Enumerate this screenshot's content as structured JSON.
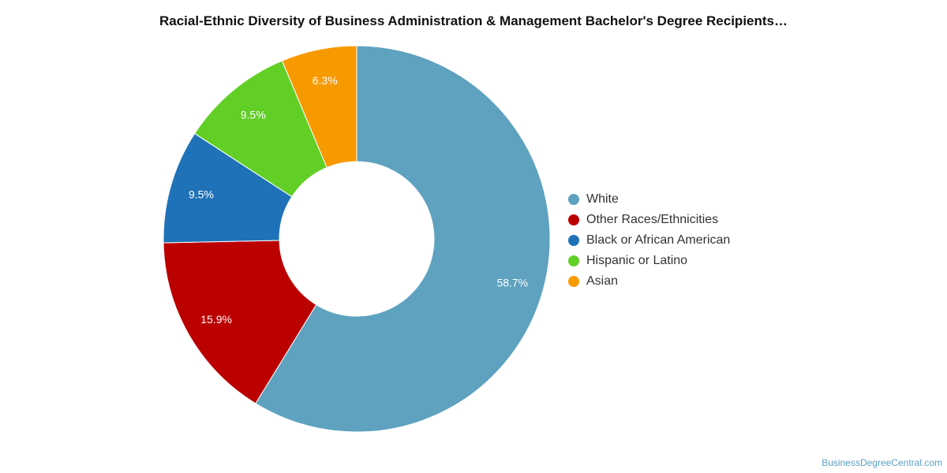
{
  "chart_data": {
    "type": "pie",
    "donut": true,
    "title": "Racial-Ethnic Diversity of Business Administration & Management Bachelor's Degree Recipients…",
    "legend_position": "right",
    "slices": [
      {
        "name": "White",
        "value": 58.7,
        "label": "58.7%",
        "color": "#5ea2bf"
      },
      {
        "name": "Other Races/Ethnicities",
        "value": 15.9,
        "label": "15.9%",
        "color": "#bb0000"
      },
      {
        "name": "Black or African American",
        "value": 9.5,
        "label": "9.5%",
        "color": "#1f72b8"
      },
      {
        "name": "Hispanic or Latino",
        "value": 9.5,
        "label": "9.5%",
        "color": "#62cf26"
      },
      {
        "name": "Asian",
        "value": 6.3,
        "label": "6.3%",
        "color": "#f79a00"
      }
    ]
  },
  "footer": {
    "watermark": "BusinessDegreeCentral.com"
  }
}
